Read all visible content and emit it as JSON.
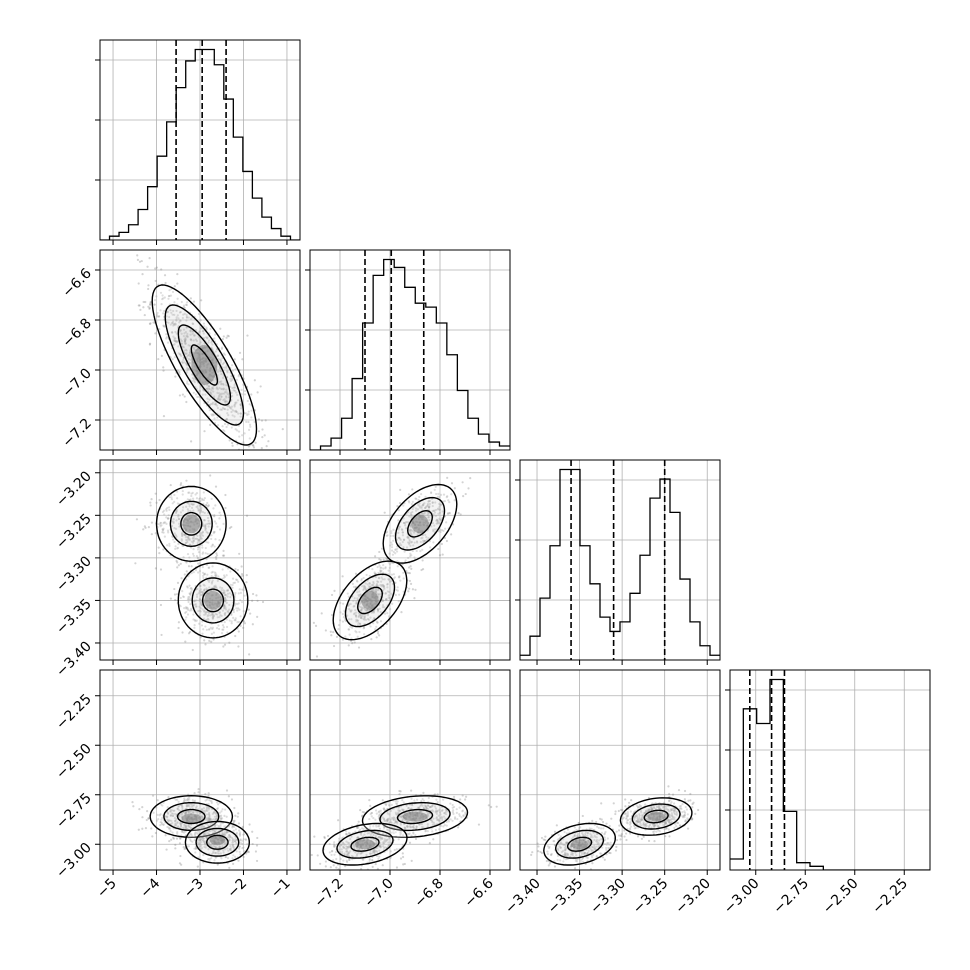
{
  "chart_data": {
    "type": "corner",
    "n_params": 4,
    "colors": {
      "frame": "#000000",
      "grid": "#b0b0b0",
      "histogram": "#000000",
      "quantile_line": "#000000",
      "points": "#808080"
    },
    "params": [
      {
        "range": [
          -5.3,
          -0.7
        ],
        "ticks": [
          -5,
          -4,
          -3,
          -2,
          -1
        ],
        "tick_labels": [
          "−5",
          "−4",
          "−3",
          "−2",
          "−1"
        ],
        "quantiles": [
          -3.55,
          -2.95,
          -2.4
        ]
      },
      {
        "range": [
          -7.32,
          -6.52
        ],
        "ticks": [
          -7.2,
          -7.0,
          -6.8,
          -6.6
        ],
        "tick_labels": [
          "−7.2",
          "−7.0",
          "−6.8",
          "−6.6"
        ],
        "quantiles": [
          -7.1,
          -6.995,
          -6.865
        ]
      },
      {
        "range": [
          -3.42,
          -3.185
        ],
        "ticks": [
          -3.4,
          -3.35,
          -3.3,
          -3.25,
          -3.2
        ],
        "tick_labels": [
          "−3.40",
          "−3.35",
          "−3.30",
          "−3.25",
          "−3.20"
        ],
        "quantiles": [
          -3.36,
          -3.31,
          -3.25
        ]
      },
      {
        "range": [
          -3.13,
          -2.12
        ],
        "ticks": [
          -3.0,
          -2.75,
          -2.5,
          -2.25
        ],
        "tick_labels": [
          "−3.00",
          "−2.75",
          "−2.50",
          "−2.25"
        ],
        "quantiles": [
          -3.03,
          -2.92,
          -2.855
        ]
      }
    ],
    "histograms": [
      {
        "counts": [
          0,
          1,
          2,
          4,
          8,
          14,
          22,
          31,
          40,
          47,
          50,
          50,
          46,
          37,
          27,
          18,
          11,
          6,
          3,
          1,
          0
        ]
      },
      {
        "counts": [
          0,
          1,
          3,
          8,
          18,
          32,
          44,
          48,
          46,
          41,
          37,
          36,
          32,
          24,
          15,
          8,
          4,
          2,
          1
        ]
      },
      {
        "counts": [
          1,
          5,
          13,
          24,
          40,
          40,
          24,
          16,
          9,
          6,
          8,
          14,
          22,
          34,
          38,
          31,
          17,
          8,
          3,
          1
        ]
      },
      {
        "counts": [
          3,
          44,
          40,
          52,
          16,
          2,
          1,
          0,
          0,
          0,
          0,
          0,
          0,
          0,
          0
        ]
      }
    ],
    "scatter_modes": [
      {
        "center": [
          -2.9,
          -6.98
        ],
        "sigma": [
          0.6,
          0.16
        ],
        "rho": -0.8,
        "weight": 1.0
      },
      {
        "center": [
          -3.2,
          -3.26
        ],
        "sigma": [
          0.4,
          0.022
        ],
        "rho": 0.0,
        "weight": 0.45
      },
      {
        "center": [
          -2.7,
          -3.35
        ],
        "sigma": [
          0.4,
          0.022
        ],
        "rho": 0.0,
        "weight": 0.55
      },
      {
        "center": [
          -6.88,
          -3.26
        ],
        "sigma": [
          0.07,
          0.022
        ],
        "rho": 0.5,
        "weight": 0.45
      },
      {
        "center": [
          -7.08,
          -3.35
        ],
        "sigma": [
          0.07,
          0.022
        ],
        "rho": 0.5,
        "weight": 0.55
      },
      {
        "center": [
          -3.2,
          -2.87
        ],
        "sigma": [
          0.45,
          0.05
        ],
        "rho": 0.0,
        "weight": 0.55
      },
      {
        "center": [
          -2.6,
          -2.98
        ],
        "sigma": [
          0.35,
          0.05
        ],
        "rho": 0.0,
        "weight": 0.45
      },
      {
        "center": [
          -6.9,
          -2.86
        ],
        "sigma": [
          0.1,
          0.05
        ],
        "rho": 0.2,
        "weight": 0.55
      },
      {
        "center": [
          -7.1,
          -3.0
        ],
        "sigma": [
          0.08,
          0.05
        ],
        "rho": 0.3,
        "weight": 0.45
      },
      {
        "center": [
          -3.26,
          -2.86
        ],
        "sigma": [
          0.02,
          0.045
        ],
        "rho": 0.2,
        "weight": 0.55
      },
      {
        "center": [
          -3.35,
          -3.0
        ],
        "sigma": [
          0.02,
          0.05
        ],
        "rho": 0.3,
        "weight": 0.45
      }
    ],
    "contours": [
      {
        "panel": [
          1,
          0
        ],
        "ellipses": [
          {
            "center": [
              -2.9,
              -6.98
            ],
            "sigma": [
              0.6,
              0.16
            ],
            "rho": -0.8,
            "levels": [
              0.5,
              1.0,
              1.5,
              2.0
            ]
          }
        ]
      },
      {
        "panel": [
          2,
          0
        ],
        "ellipses": [
          {
            "center": [
              -3.2,
              -3.26
            ],
            "sigma": [
              0.4,
              0.022
            ],
            "rho": 0.0,
            "levels": [
              0.6,
              1.2,
              2.0
            ]
          },
          {
            "center": [
              -2.7,
              -3.35
            ],
            "sigma": [
              0.4,
              0.022
            ],
            "rho": 0.0,
            "levels": [
              0.6,
              1.2,
              2.0
            ]
          }
        ]
      },
      {
        "panel": [
          2,
          1
        ],
        "ellipses": [
          {
            "center": [
              -6.88,
              -3.26
            ],
            "sigma": [
              0.07,
              0.022
            ],
            "rho": 0.5,
            "levels": [
              0.7,
              1.4,
              2.1
            ]
          },
          {
            "center": [
              -7.08,
              -3.35
            ],
            "sigma": [
              0.07,
              0.022
            ],
            "rho": 0.5,
            "levels": [
              0.7,
              1.4,
              2.1
            ]
          }
        ]
      },
      {
        "panel": [
          3,
          0
        ],
        "ellipses": [
          {
            "center": [
              -3.2,
              -2.86
            ],
            "sigma": [
              0.45,
              0.05
            ],
            "rho": 0.0,
            "levels": [
              0.7,
              1.4,
              2.1
            ]
          },
          {
            "center": [
              -2.6,
              -2.99
            ],
            "sigma": [
              0.35,
              0.05
            ],
            "rho": 0.0,
            "levels": [
              0.7,
              1.4,
              2.1
            ]
          }
        ]
      },
      {
        "panel": [
          3,
          1
        ],
        "ellipses": [
          {
            "center": [
              -6.9,
              -2.86
            ],
            "sigma": [
              0.1,
              0.05
            ],
            "rho": 0.2,
            "levels": [
              0.7,
              1.4,
              2.1
            ]
          },
          {
            "center": [
              -7.1,
              -3.0
            ],
            "sigma": [
              0.08,
              0.05
            ],
            "rho": 0.3,
            "levels": [
              0.7,
              1.4,
              2.1
            ]
          }
        ]
      },
      {
        "panel": [
          3,
          2
        ],
        "ellipses": [
          {
            "center": [
              -3.26,
              -2.86
            ],
            "sigma": [
              0.02,
              0.045
            ],
            "rho": 0.2,
            "levels": [
              0.7,
              1.4,
              2.1
            ]
          },
          {
            "center": [
              -3.35,
              -3.0
            ],
            "sigma": [
              0.02,
              0.05
            ],
            "rho": 0.3,
            "levels": [
              0.7,
              1.4,
              2.1
            ]
          }
        ]
      }
    ]
  }
}
